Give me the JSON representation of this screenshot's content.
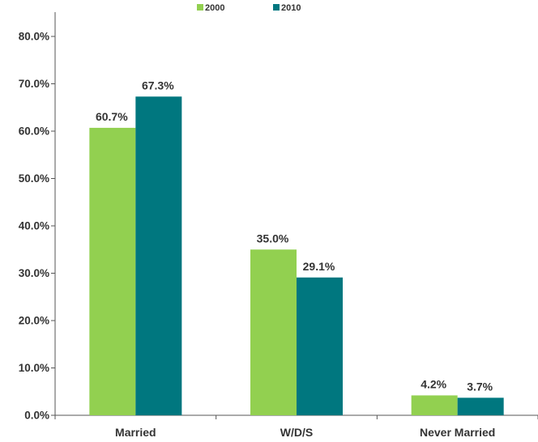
{
  "chart_data": {
    "type": "bar",
    "categories": [
      "Married",
      "W/D/S",
      "Never Married"
    ],
    "series": [
      {
        "name": "2000",
        "values": [
          60.7,
          35.0,
          4.2
        ],
        "color": "#92D050"
      },
      {
        "name": "2010",
        "values": [
          67.3,
          29.1,
          3.7
        ],
        "color": "#00777F"
      }
    ],
    "data_labels": [
      [
        "60.7%",
        "35.0%",
        "4.2%"
      ],
      [
        "67.3%",
        "29.1%",
        "3.7%"
      ]
    ],
    "ylim": [
      0,
      80
    ],
    "yticks": [
      0,
      10,
      20,
      30,
      40,
      50,
      60,
      70,
      80
    ],
    "ytick_labels": [
      "0.0%",
      "10.0%",
      "20.0%",
      "30.0%",
      "40.0%",
      "50.0%",
      "60.0%",
      "70.0%",
      "80.0%"
    ],
    "grid": false,
    "legend_position": "top-center",
    "xlabel": "",
    "ylabel": ""
  }
}
